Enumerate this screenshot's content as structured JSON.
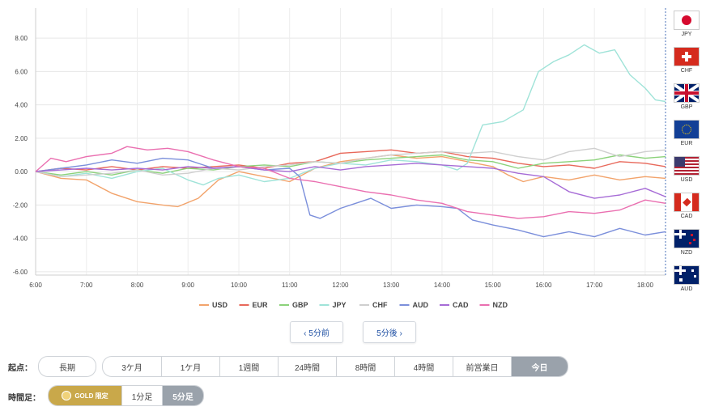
{
  "chart_data": {
    "type": "line",
    "y_ticks": [
      "8.00",
      "6.00",
      "4.00",
      "2.00",
      "0.00",
      "-2.00",
      "-4.00",
      "-6.00"
    ],
    "x_ticks": [
      "6:00",
      "7:00",
      "8:00",
      "9:00",
      "10:00",
      "11:00",
      "12:00",
      "13:00",
      "14:00",
      "15:00",
      "16:00",
      "17:00",
      "18:00"
    ],
    "ylim": [
      -6.2,
      9.8
    ],
    "xlim": [
      0,
      12.4
    ],
    "grid": true,
    "legend_position": "bottom",
    "series": [
      {
        "name": "USD",
        "color": "#f2a36b",
        "points": [
          [
            0,
            0
          ],
          [
            0.5,
            -0.4
          ],
          [
            1,
            -0.5
          ],
          [
            1.5,
            -1.3
          ],
          [
            2,
            -1.8
          ],
          [
            2.5,
            -2.0
          ],
          [
            2.8,
            -2.1
          ],
          [
            3.2,
            -1.6
          ],
          [
            3.6,
            -0.5
          ],
          [
            4,
            0
          ],
          [
            4.5,
            -0.3
          ],
          [
            5,
            -0.6
          ],
          [
            5.5,
            0.2
          ],
          [
            6,
            0.6
          ],
          [
            6.5,
            0.8
          ],
          [
            7,
            1.0
          ],
          [
            7.5,
            0.8
          ],
          [
            8,
            0.9
          ],
          [
            8.5,
            0.6
          ],
          [
            9,
            0.3
          ],
          [
            9.3,
            -0.2
          ],
          [
            9.6,
            -0.6
          ],
          [
            10,
            -0.3
          ],
          [
            10.5,
            -0.5
          ],
          [
            11,
            -0.2
          ],
          [
            11.5,
            -0.5
          ],
          [
            12,
            -0.3
          ],
          [
            12.4,
            -0.4
          ]
        ]
      },
      {
        "name": "EUR",
        "color": "#e8685a",
        "points": [
          [
            0,
            0
          ],
          [
            0.5,
            0.2
          ],
          [
            1,
            0.1
          ],
          [
            1.5,
            0.3
          ],
          [
            2,
            0.1
          ],
          [
            2.5,
            0.3
          ],
          [
            3,
            0.2
          ],
          [
            3.5,
            0.3
          ],
          [
            4,
            0.4
          ],
          [
            4.5,
            0.2
          ],
          [
            5,
            0.5
          ],
          [
            5.5,
            0.6
          ],
          [
            6,
            1.1
          ],
          [
            6.5,
            1.2
          ],
          [
            7,
            1.3
          ],
          [
            7.5,
            1.1
          ],
          [
            8,
            1.2
          ],
          [
            8.5,
            0.9
          ],
          [
            9,
            0.8
          ],
          [
            9.5,
            0.5
          ],
          [
            10,
            0.3
          ],
          [
            10.5,
            0.4
          ],
          [
            11,
            0.2
          ],
          [
            11.5,
            0.6
          ],
          [
            12,
            0.5
          ],
          [
            12.4,
            0.3
          ]
        ]
      },
      {
        "name": "GBP",
        "color": "#8bd27a",
        "points": [
          [
            0,
            0
          ],
          [
            0.5,
            -0.2
          ],
          [
            1,
            0
          ],
          [
            1.5,
            -0.2
          ],
          [
            2,
            0.1
          ],
          [
            2.5,
            -0.1
          ],
          [
            3,
            0.2
          ],
          [
            3.5,
            0.1
          ],
          [
            4,
            0.3
          ],
          [
            4.5,
            0.4
          ],
          [
            5,
            0.3
          ],
          [
            5.5,
            0.6
          ],
          [
            6,
            0.5
          ],
          [
            6.5,
            0.7
          ],
          [
            7,
            0.8
          ],
          [
            7.5,
            0.9
          ],
          [
            8,
            1.0
          ],
          [
            8.5,
            0.7
          ],
          [
            9,
            0.6
          ],
          [
            9.5,
            0.2
          ],
          [
            10,
            0.5
          ],
          [
            10.5,
            0.6
          ],
          [
            11,
            0.7
          ],
          [
            11.5,
            1.0
          ],
          [
            12,
            0.8
          ],
          [
            12.4,
            0.9
          ]
        ]
      },
      {
        "name": "JPY",
        "color": "#9fe3d8",
        "points": [
          [
            0,
            0
          ],
          [
            0.5,
            -0.3
          ],
          [
            1,
            -0.1
          ],
          [
            1.5,
            -0.4
          ],
          [
            2,
            0
          ],
          [
            2.5,
            0.2
          ],
          [
            3,
            -0.5
          ],
          [
            3.3,
            -0.8
          ],
          [
            3.6,
            -0.4
          ],
          [
            4,
            -0.2
          ],
          [
            4.5,
            -0.6
          ],
          [
            5,
            -0.4
          ],
          [
            5.5,
            0.2
          ],
          [
            6,
            0.5
          ],
          [
            6.5,
            0.4
          ],
          [
            7,
            0.7
          ],
          [
            7.5,
            0.6
          ],
          [
            8,
            0.4
          ],
          [
            8.3,
            0.1
          ],
          [
            8.5,
            0.5
          ],
          [
            8.8,
            2.8
          ],
          [
            9.2,
            3.0
          ],
          [
            9.6,
            3.7
          ],
          [
            9.9,
            6.0
          ],
          [
            10.2,
            6.6
          ],
          [
            10.5,
            7.0
          ],
          [
            10.8,
            7.6
          ],
          [
            11.1,
            7.1
          ],
          [
            11.4,
            7.3
          ],
          [
            11.7,
            5.8
          ],
          [
            12,
            5.0
          ],
          [
            12.2,
            4.3
          ],
          [
            12.4,
            4.2
          ]
        ]
      },
      {
        "name": "CHF",
        "color": "#cfcfcf",
        "points": [
          [
            0,
            0
          ],
          [
            0.5,
            -0.3
          ],
          [
            1,
            -0.2
          ],
          [
            1.5,
            -0.1
          ],
          [
            2,
            0.1
          ],
          [
            2.5,
            -0.2
          ],
          [
            3,
            -0.1
          ],
          [
            3.5,
            0.2
          ],
          [
            4,
            0.1
          ],
          [
            4.5,
            0.3
          ],
          [
            5,
            0.4
          ],
          [
            5.5,
            0.6
          ],
          [
            6,
            0.5
          ],
          [
            6.5,
            0.8
          ],
          [
            7,
            1.0
          ],
          [
            7.5,
            1.1
          ],
          [
            8,
            1.2
          ],
          [
            8.5,
            1.1
          ],
          [
            9,
            1.2
          ],
          [
            9.5,
            0.9
          ],
          [
            10,
            0.7
          ],
          [
            10.5,
            1.2
          ],
          [
            11,
            1.4
          ],
          [
            11.5,
            0.9
          ],
          [
            12,
            1.2
          ],
          [
            12.4,
            1.3
          ]
        ]
      },
      {
        "name": "AUD",
        "color": "#7b8fdb",
        "points": [
          [
            0,
            0
          ],
          [
            0.5,
            0.2
          ],
          [
            1,
            0.4
          ],
          [
            1.5,
            0.7
          ],
          [
            2,
            0.5
          ],
          [
            2.5,
            0.8
          ],
          [
            3,
            0.7
          ],
          [
            3.5,
            0.2
          ],
          [
            4,
            0.3
          ],
          [
            4.5,
            0.1
          ],
          [
            5,
            0.2
          ],
          [
            5.2,
            -0.3
          ],
          [
            5.4,
            -2.6
          ],
          [
            5.6,
            -2.8
          ],
          [
            6,
            -2.2
          ],
          [
            6.3,
            -1.9
          ],
          [
            6.6,
            -1.6
          ],
          [
            7,
            -2.2
          ],
          [
            7.5,
            -2.0
          ],
          [
            8,
            -2.1
          ],
          [
            8.3,
            -2.2
          ],
          [
            8.6,
            -2.9
          ],
          [
            9,
            -3.2
          ],
          [
            9.5,
            -3.5
          ],
          [
            10,
            -3.9
          ],
          [
            10.5,
            -3.6
          ],
          [
            11,
            -3.9
          ],
          [
            11.5,
            -3.4
          ],
          [
            12,
            -3.8
          ],
          [
            12.4,
            -3.6
          ]
        ]
      },
      {
        "name": "CAD",
        "color": "#a66bd6",
        "points": [
          [
            0,
            0
          ],
          [
            0.5,
            0.1
          ],
          [
            1,
            0.2
          ],
          [
            1.5,
            0.1
          ],
          [
            2,
            0.2
          ],
          [
            2.5,
            0.1
          ],
          [
            3,
            0.3
          ],
          [
            3.5,
            0.2
          ],
          [
            4,
            0.3
          ],
          [
            4.5,
            0.1
          ],
          [
            5,
            0.0
          ],
          [
            5.5,
            0.3
          ],
          [
            6,
            0.1
          ],
          [
            6.5,
            0.3
          ],
          [
            7,
            0.4
          ],
          [
            7.5,
            0.5
          ],
          [
            8,
            0.4
          ],
          [
            8.5,
            0.3
          ],
          [
            9,
            0.2
          ],
          [
            9.5,
            -0.1
          ],
          [
            10,
            -0.3
          ],
          [
            10.5,
            -1.2
          ],
          [
            11,
            -1.6
          ],
          [
            11.5,
            -1.4
          ],
          [
            12,
            -1.0
          ],
          [
            12.4,
            -1.5
          ]
        ]
      },
      {
        "name": "NZD",
        "color": "#ea6fb0",
        "points": [
          [
            0,
            0
          ],
          [
            0.3,
            0.8
          ],
          [
            0.6,
            0.6
          ],
          [
            1,
            0.9
          ],
          [
            1.5,
            1.1
          ],
          [
            1.8,
            1.5
          ],
          [
            2.2,
            1.3
          ],
          [
            2.6,
            1.4
          ],
          [
            3,
            1.2
          ],
          [
            3.5,
            0.7
          ],
          [
            4,
            0.3
          ],
          [
            4.5,
            0.2
          ],
          [
            5,
            -0.4
          ],
          [
            5.5,
            -0.6
          ],
          [
            6,
            -0.9
          ],
          [
            6.5,
            -1.2
          ],
          [
            7,
            -1.4
          ],
          [
            7.5,
            -1.7
          ],
          [
            8,
            -1.9
          ],
          [
            8.5,
            -2.4
          ],
          [
            9,
            -2.6
          ],
          [
            9.5,
            -2.8
          ],
          [
            10,
            -2.7
          ],
          [
            10.5,
            -2.4
          ],
          [
            11,
            -2.5
          ],
          [
            11.5,
            -2.3
          ],
          [
            12,
            -1.7
          ],
          [
            12.4,
            -1.9
          ]
        ]
      }
    ]
  },
  "flags": [
    {
      "code": "JPY",
      "kind": "jpy"
    },
    {
      "code": "CHF",
      "kind": "chf"
    },
    {
      "code": "GBP",
      "kind": "gbp"
    },
    {
      "code": "EUR",
      "kind": "eur"
    },
    {
      "code": "USD",
      "kind": "usd"
    },
    {
      "code": "CAD",
      "kind": "cad"
    },
    {
      "code": "NZD",
      "kind": "nzd"
    },
    {
      "code": "AUD",
      "kind": "aud"
    }
  ],
  "nav": {
    "prev": "‹ 5分前",
    "next": "5分後 ›"
  },
  "start_point": {
    "label": "起点：",
    "long": "長期",
    "options": [
      "3ケ月",
      "1ケ月",
      "1週間",
      "24時間",
      "8時間",
      "4時間",
      "前営業日",
      "今日"
    ],
    "selected": "今日"
  },
  "timeframe": {
    "label": "時間足：",
    "gold": "GOLD 限定",
    "options": [
      "1分足",
      "5分足"
    ],
    "selected": "5分足"
  },
  "colors": {
    "accent": "#1e4fa3",
    "selected": "#9aa2ab",
    "gold": "#c9a84a"
  }
}
